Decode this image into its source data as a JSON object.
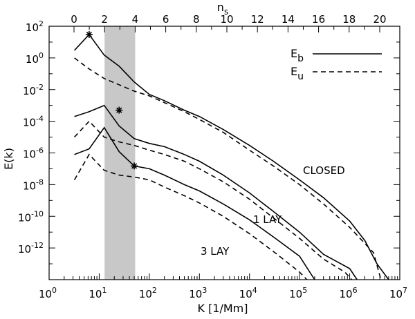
{
  "chart_data": {
    "type": "line",
    "title": "",
    "xlabel": "K [1/Mm]",
    "ylabel": "E(k)",
    "top_xlabel": "n_s",
    "x_scale": "log",
    "y_scale": "log",
    "xlim": [
      1,
      10000000
    ],
    "ylim": [
      1e-14,
      100
    ],
    "top_axis": {
      "ticks": [
        0,
        2,
        4,
        6,
        8,
        10,
        12,
        14,
        16,
        18,
        20
      ],
      "tick_labels": [
        "0",
        "2",
        "4",
        "6",
        "8",
        "10",
        "12",
        "14",
        "16",
        "18",
        "20"
      ]
    },
    "x_ticks": [
      {
        "base": "10",
        "exp": "0"
      },
      {
        "base": "10",
        "exp": "1"
      },
      {
        "base": "10",
        "exp": "2"
      },
      {
        "base": "10",
        "exp": "3"
      },
      {
        "base": "10",
        "exp": "4"
      },
      {
        "base": "10",
        "exp": "5"
      },
      {
        "base": "10",
        "exp": "6"
      },
      {
        "base": "10",
        "exp": "7"
      }
    ],
    "y_ticks": [
      {
        "base": "10",
        "exp": "2"
      },
      {
        "base": "10",
        "exp": "0"
      },
      {
        "base": "10",
        "exp": "-2"
      },
      {
        "base": "10",
        "exp": "-4"
      },
      {
        "base": "10",
        "exp": "-6"
      },
      {
        "base": "10",
        "exp": "-8"
      },
      {
        "base": "10",
        "exp": "-10"
      },
      {
        "base": "10",
        "exp": "-12"
      }
    ],
    "shaded_band": {
      "n_s_from": 2,
      "n_s_to": 4,
      "color": "#c8c8c8"
    },
    "legend": {
      "placement": "top-right",
      "entries": [
        {
          "label_base": "E",
          "label_sub": "b",
          "style": "solid"
        },
        {
          "label_base": "E",
          "label_sub": "u",
          "style": "dashed"
        }
      ]
    },
    "annotations": [
      "CLOSED",
      "1 LAY",
      "3 LAY"
    ],
    "series": [
      {
        "style": "solid",
        "group": "CLOSED",
        "x": [
          3.2,
          6.3,
          12.6,
          25,
          50,
          100,
          200,
          500,
          1000,
          3000,
          10000,
          30000,
          100000,
          300000,
          1000000,
          2000000,
          3500000,
          6000000
        ],
        "y": [
          3,
          30,
          1.5,
          0.3,
          0.03,
          0.005,
          0.002,
          0.0005,
          0.0002,
          3e-05,
          3e-06,
          3e-07,
          2e-08,
          1.5e-09,
          5e-11,
          3e-12,
          1e-13,
          1e-14
        ]
      },
      {
        "style": "dashed",
        "group": "CLOSED",
        "x": [
          3.2,
          6.3,
          12.6,
          25,
          50,
          100,
          200,
          500,
          1000,
          3000,
          10000,
          30000,
          100000,
          300000,
          1000000,
          3000000,
          4200000
        ],
        "y": [
          1,
          0.2,
          0.05,
          0.02,
          0.008,
          0.004,
          0.0015,
          0.0004,
          0.00013,
          2e-05,
          1.5e-06,
          1.5e-07,
          1e-08,
          6e-10,
          2e-11,
          5e-13,
          1e-14
        ]
      },
      {
        "style": "solid",
        "group": "1 LAY",
        "x": [
          3.2,
          6.3,
          12.6,
          25,
          50,
          100,
          200,
          500,
          1000,
          3000,
          10000,
          30000,
          100000,
          300000,
          1000000,
          1400000
        ],
        "y": [
          0.0002,
          0.0004,
          0.001,
          5e-05,
          8e-06,
          4e-06,
          2.5e-06,
          8e-07,
          3e-07,
          4e-08,
          3e-09,
          2e-10,
          1e-11,
          4e-13,
          5e-14,
          1e-14
        ]
      },
      {
        "style": "dashed",
        "group": "1 LAY",
        "x": [
          3.2,
          6.3,
          12.6,
          25,
          50,
          100,
          200,
          500,
          1000,
          3000,
          10000,
          30000,
          100000,
          300000,
          800000,
          1100000
        ],
        "y": [
          1e-05,
          0.0001,
          1e-05,
          5e-06,
          3e-06,
          1.5e-06,
          8e-07,
          3e-07,
          1e-07,
          1.5e-08,
          1.2e-09,
          8e-11,
          4e-12,
          2e-13,
          3e-14,
          1e-14
        ]
      },
      {
        "style": "solid",
        "group": "3 LAY",
        "x": [
          3.2,
          6.3,
          12.6,
          25,
          50,
          100,
          200,
          500,
          1000,
          3000,
          10000,
          30000,
          100000,
          200000
        ],
        "y": [
          8e-07,
          1.8e-06,
          4e-05,
          1.2e-06,
          1.5e-07,
          1e-07,
          4e-08,
          1e-08,
          4e-09,
          6e-10,
          6e-11,
          5e-12,
          3e-13,
          1e-14
        ]
      },
      {
        "style": "dashed",
        "group": "3 LAY",
        "x": [
          3.2,
          6.3,
          12.6,
          25,
          50,
          100,
          200,
          500,
          1000,
          3000,
          10000,
          30000,
          100000,
          140000
        ],
        "y": [
          2e-08,
          8e-07,
          8e-08,
          4e-08,
          3e-08,
          2e-08,
          7e-09,
          2e-09,
          7e-10,
          1e-10,
          8e-12,
          6e-13,
          3e-14,
          1e-14
        ]
      }
    ],
    "markers": [
      {
        "symbol": "asterisk",
        "x": 6.3,
        "y": 30
      },
      {
        "symbol": "asterisk",
        "x": 25,
        "y": 0.0005
      },
      {
        "symbol": "asterisk",
        "x": 50,
        "y": 1.5e-07
      }
    ]
  }
}
